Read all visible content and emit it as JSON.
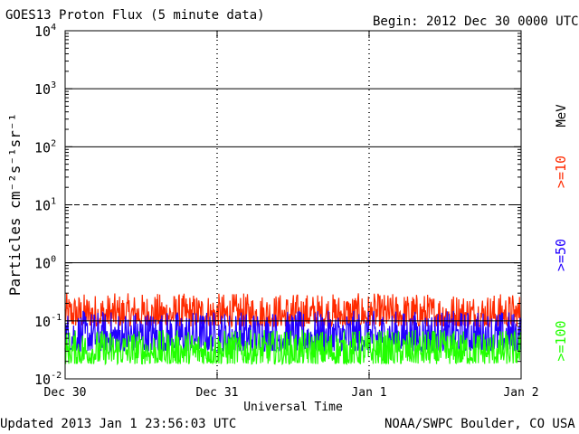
{
  "header": {
    "title": "GOES13 Proton Flux (5 minute data)",
    "begin": "Begin: 2012 Dec 30 0000 UTC"
  },
  "footer": {
    "updated": "Updated 2013 Jan  1 23:56:03 UTC",
    "credit": "NOAA/SWPC Boulder, CO USA"
  },
  "colors": {
    "gte10": "#ff2a00",
    "gte50": "#2200ff",
    "gte100": "#22ff00",
    "axis": "#000000"
  },
  "chart_data": {
    "type": "line",
    "title": "GOES13 Proton Flux (5 minute data)",
    "xlabel": "Universal Time",
    "ylabel": "Particles cm⁻²s⁻¹sr⁻¹",
    "y_scale": "log",
    "ylim": [
      0.01,
      10000
    ],
    "xlim": [
      "2012-12-30 00:00",
      "2013-01-02 00:00"
    ],
    "x_tick_labels": [
      "Dec 30",
      "Dec 31",
      "Jan 1",
      "Jan 2"
    ],
    "y_tick_labels": [
      {
        "base": "10",
        "exp": "-2"
      },
      {
        "base": "10",
        "exp": "-1"
      },
      {
        "base": "10",
        "exp": "0"
      },
      {
        "base": "10",
        "exp": "1"
      },
      {
        "base": "10",
        "exp": "2"
      },
      {
        "base": "10",
        "exp": "3"
      },
      {
        "base": "10",
        "exp": "4"
      }
    ],
    "y_tick_values": [
      0.01,
      0.1,
      1,
      10,
      100,
      1000,
      10000
    ],
    "gridlines": [
      {
        "value": 0.1,
        "style": "solid"
      },
      {
        "value": 1,
        "style": "solid"
      },
      {
        "value": 10,
        "style": "dashed"
      },
      {
        "value": 100,
        "style": "solid"
      },
      {
        "value": 1000,
        "style": "solid"
      }
    ],
    "legend_unit": "MeV",
    "series": [
      {
        "name": ">=10",
        "color": "#ff2a00",
        "level_range": [
          0.08,
          0.3
        ],
        "typical": 0.14
      },
      {
        "name": ">=50",
        "color": "#2200ff",
        "level_range": [
          0.03,
          0.15
        ],
        "typical": 0.06
      },
      {
        "name": ">=100",
        "color": "#22ff00",
        "level_range": [
          0.018,
          0.07
        ],
        "typical": 0.03
      }
    ]
  }
}
